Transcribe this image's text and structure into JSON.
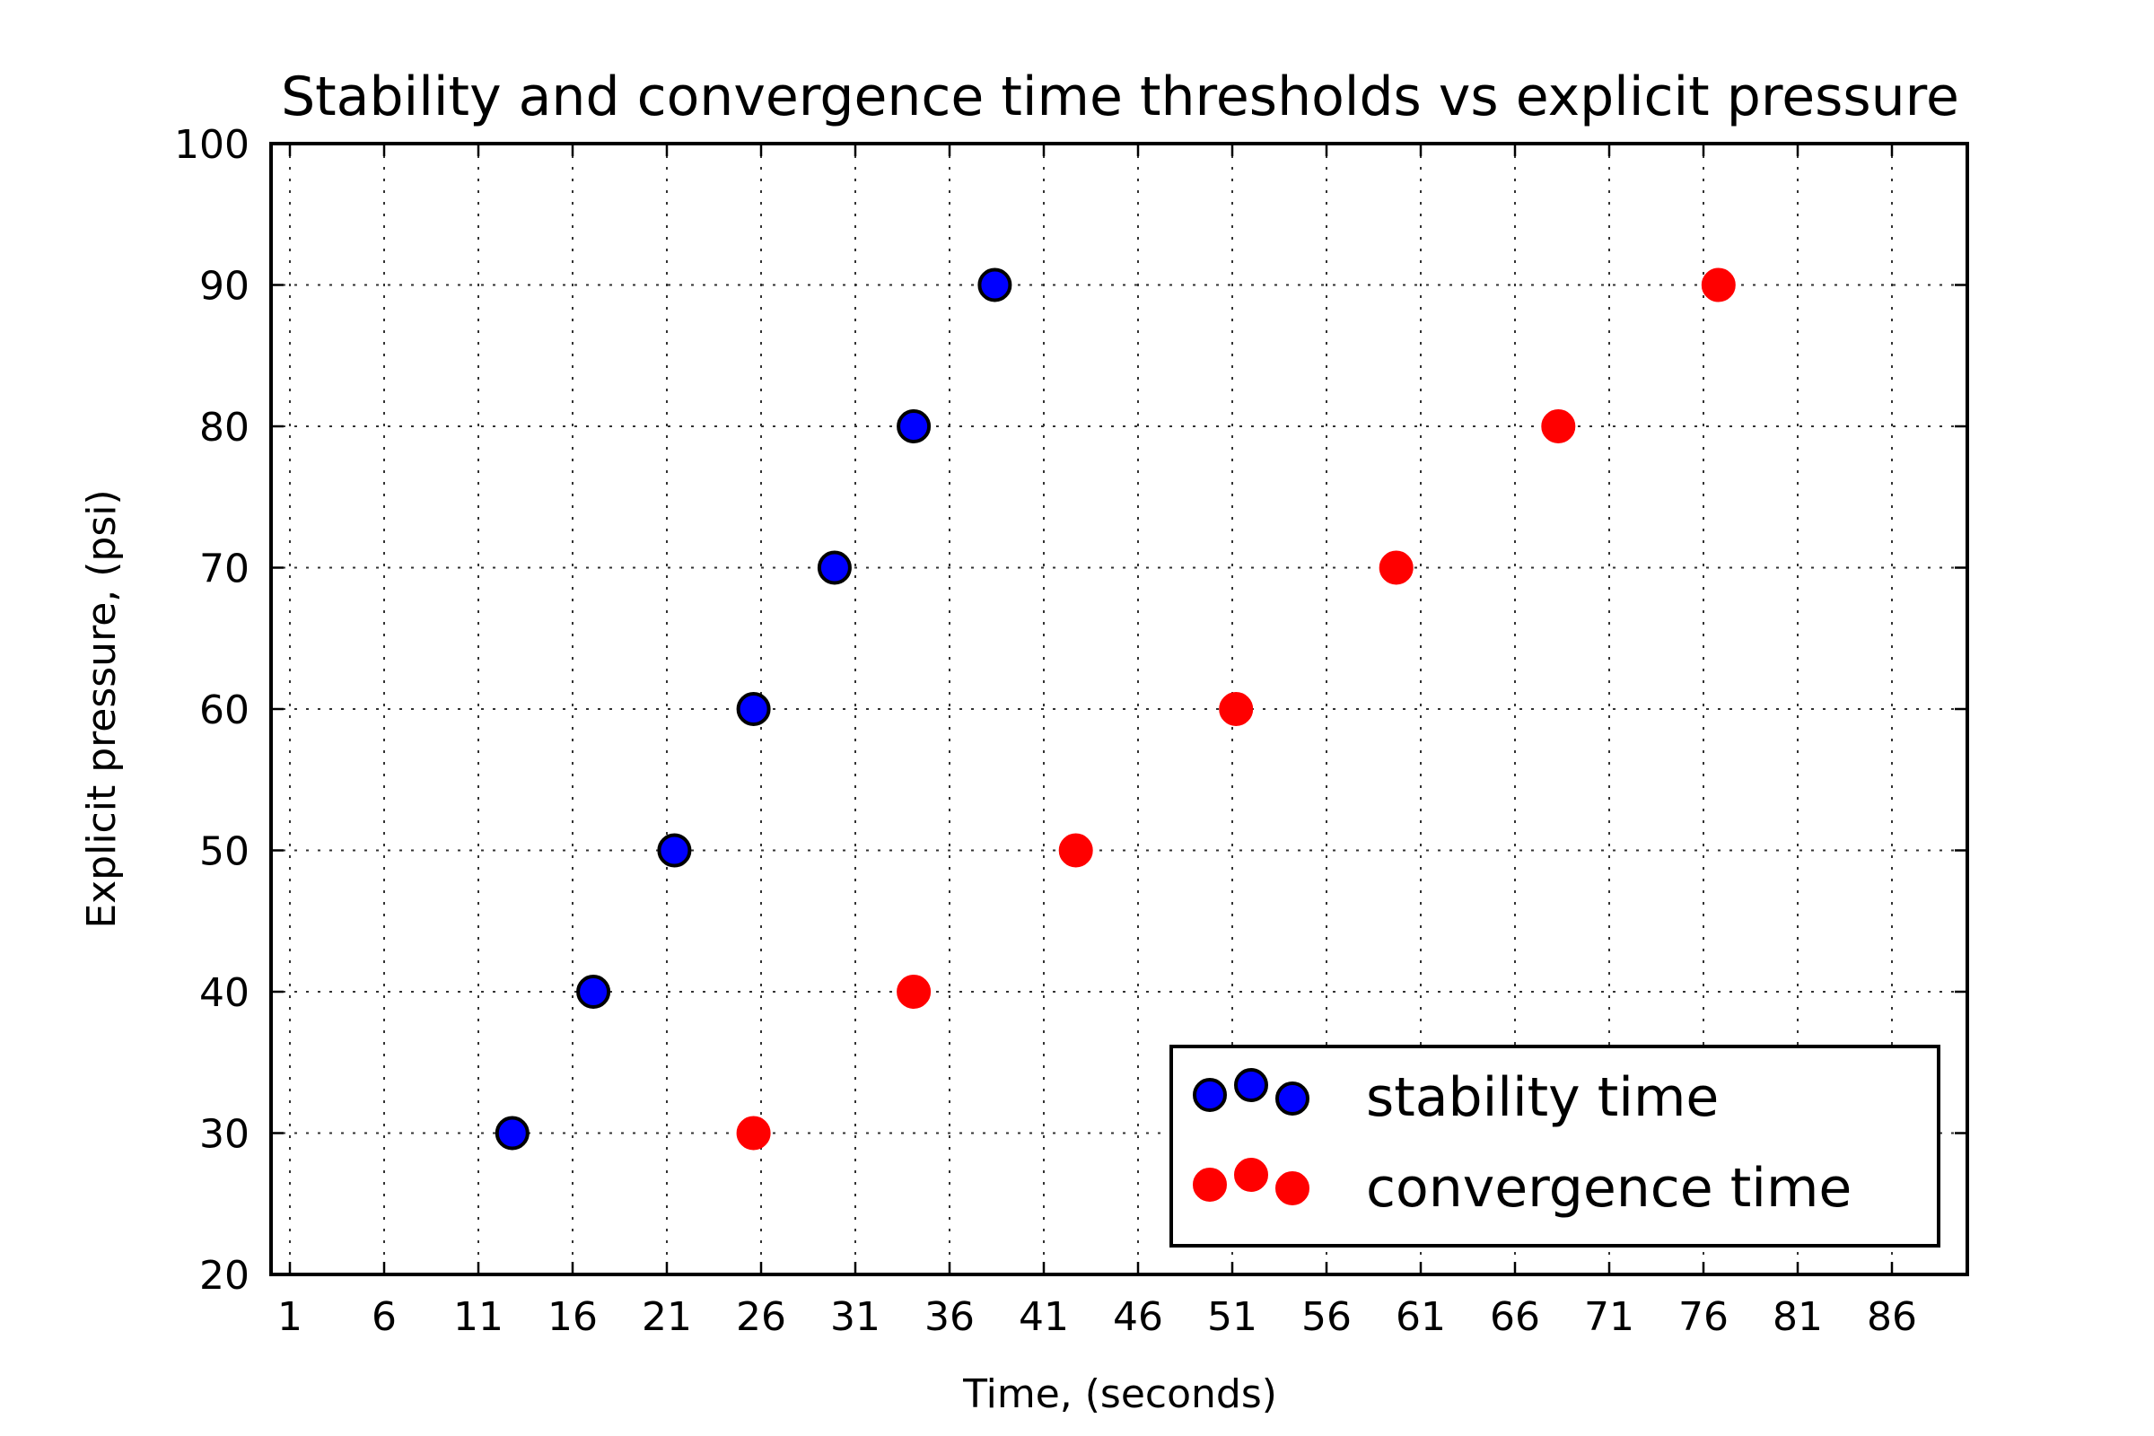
{
  "chart_data": {
    "type": "scatter",
    "title": "Stability and convergence time thresholds vs explicit pressure",
    "xlabel": "Time, (seconds)",
    "ylabel": "Explicit pressure, (psi)",
    "xlim": [
      0,
      90
    ],
    "ylim": [
      20,
      100
    ],
    "xticks": [
      "1",
      "6",
      "11",
      "16",
      "21",
      "26",
      "31",
      "36",
      "41",
      "46",
      "51",
      "56",
      "61",
      "66",
      "71",
      "76",
      "81",
      "86"
    ],
    "yticks": [
      "20",
      "30",
      "40",
      "50",
      "60",
      "70",
      "80",
      "90",
      "100"
    ],
    "grid": true,
    "legend_position": "lower-right",
    "series": [
      {
        "name": "stability time",
        "color": "#0000ff",
        "edge_color": "#000000",
        "points": [
          {
            "x": 12.8,
            "y": 30
          },
          {
            "x": 17.1,
            "y": 40
          },
          {
            "x": 21.4,
            "y": 50
          },
          {
            "x": 25.6,
            "y": 60
          },
          {
            "x": 29.9,
            "y": 70
          },
          {
            "x": 34.1,
            "y": 80
          },
          {
            "x": 38.4,
            "y": 90
          }
        ]
      },
      {
        "name": "convergence time",
        "color": "#ff0000",
        "edge_color": "#ff0000",
        "points": [
          {
            "x": 25.6,
            "y": 30
          },
          {
            "x": 34.1,
            "y": 40
          },
          {
            "x": 42.7,
            "y": 50
          },
          {
            "x": 51.2,
            "y": 60
          },
          {
            "x": 59.7,
            "y": 70
          },
          {
            "x": 68.3,
            "y": 80
          },
          {
            "x": 76.8,
            "y": 90
          }
        ]
      }
    ]
  }
}
